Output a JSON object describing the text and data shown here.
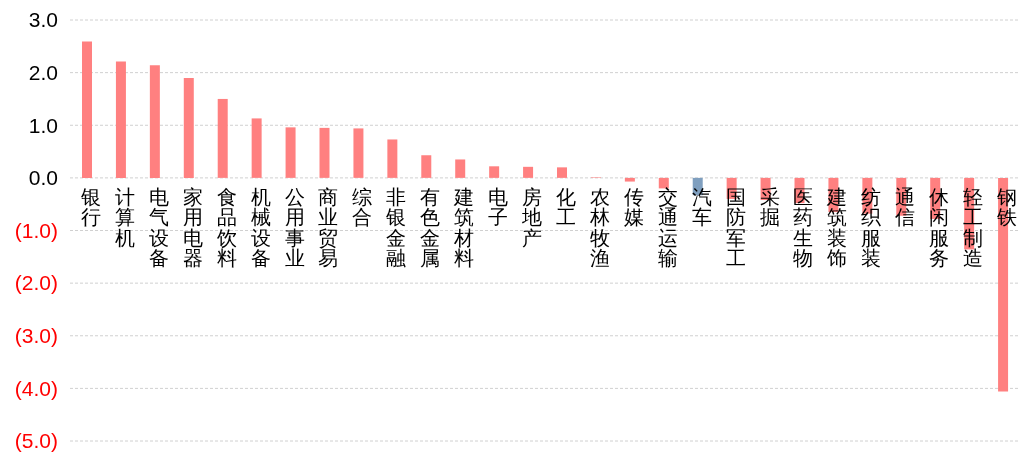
{
  "chart_data": {
    "type": "bar",
    "categories": [
      "银行",
      "计算机",
      "电气设备",
      "家用电器",
      "食品饮料",
      "机械设备",
      "公用事业",
      "商业贸易",
      "综合",
      "非银金融",
      "有色金属",
      "建筑材料",
      "电子",
      "房地产",
      "化工",
      "农林牧渔",
      "传媒",
      "交通运输",
      "汽车",
      "国防军工",
      "采掘",
      "医药生物",
      "建筑装饰",
      "纺织服装",
      "通信",
      "休闲服务",
      "轻工制造",
      "钢铁"
    ],
    "values": [
      2.59,
      2.21,
      2.14,
      1.9,
      1.5,
      1.13,
      0.96,
      0.95,
      0.94,
      0.73,
      0.43,
      0.35,
      0.22,
      0.21,
      0.2,
      0.01,
      -0.07,
      -0.2,
      -0.33,
      -0.4,
      -0.42,
      -0.48,
      -0.65,
      -0.68,
      -0.72,
      -0.78,
      -1.36,
      -4.06
    ],
    "colors": [
      "#ff8080",
      "#ff8080",
      "#ff8080",
      "#ff8080",
      "#ff8080",
      "#ff8080",
      "#ff8080",
      "#ff8080",
      "#ff8080",
      "#ff8080",
      "#ff8080",
      "#ff8080",
      "#ff8080",
      "#ff8080",
      "#ff8080",
      "#ff8080",
      "#ff8080",
      "#ff8080",
      "#7f9fbf",
      "#ff8080",
      "#ff8080",
      "#ff8080",
      "#ff8080",
      "#ff8080",
      "#ff8080",
      "#ff8080",
      "#ff8080",
      "#ff8080"
    ],
    "ylim": [
      -5,
      3
    ],
    "yticks": [
      {
        "value": 3,
        "label": "3.0"
      },
      {
        "value": 2,
        "label": "2.0"
      },
      {
        "value": 1,
        "label": "1.0"
      },
      {
        "value": 0,
        "label": "0.0"
      },
      {
        "value": -1,
        "label": "(1.0)"
      },
      {
        "value": -2,
        "label": "(2.0)"
      },
      {
        "value": -3,
        "label": "(3.0)"
      },
      {
        "value": -4,
        "label": "(4.0)"
      },
      {
        "value": -5,
        "label": "(5.0)"
      }
    ],
    "grid": "y"
  }
}
